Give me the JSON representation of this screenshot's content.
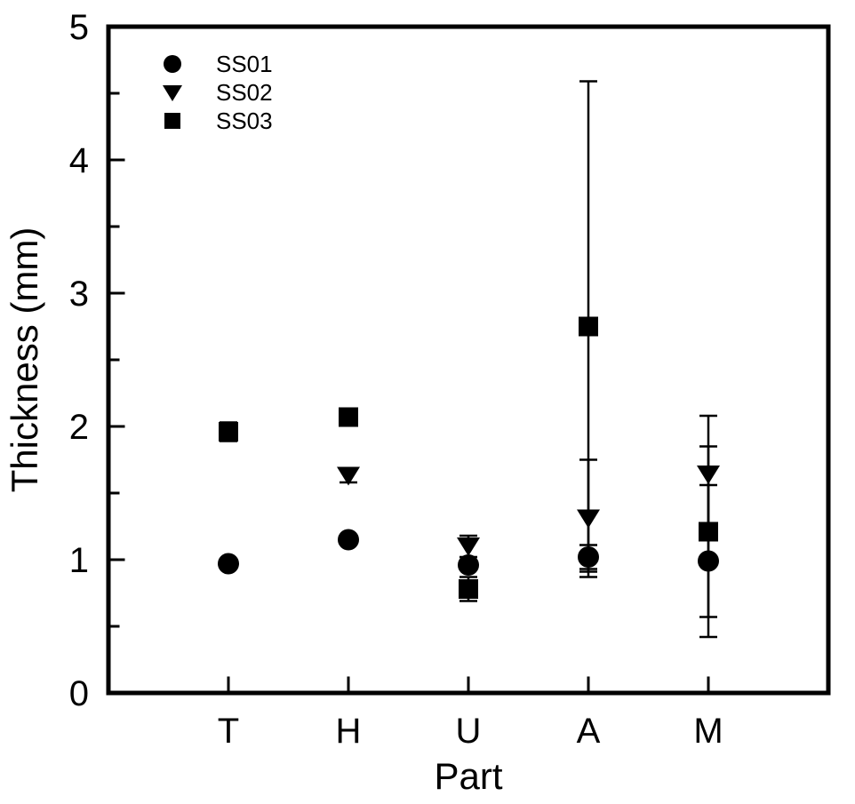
{
  "chart_data": {
    "type": "scatter",
    "title": "",
    "xlabel": "Part",
    "ylabel": "Thickness (mm)",
    "categories": [
      "T",
      "H",
      "U",
      "A",
      "M"
    ],
    "ylim": [
      0,
      5
    ],
    "yticks": [
      0,
      1,
      2,
      3,
      4,
      5
    ],
    "yminorticks": [
      0.5,
      1.5,
      2.5,
      3.5,
      4.5
    ],
    "grid": false,
    "legend_position": "top-left-inside",
    "marker_color": "#000000",
    "background_color": "#ffffff",
    "series": [
      {
        "name": "SS01",
        "marker": "circle",
        "values": [
          0.97,
          1.15,
          0.96,
          1.02,
          0.99
        ],
        "errors": [
          0,
          0,
          0,
          0.09,
          0.57
        ]
      },
      {
        "name": "SS02",
        "marker": "triangle-down",
        "values": [
          null,
          1.63,
          1.1,
          1.31,
          1.64
        ],
        "errors": [
          0,
          0.05,
          0.08,
          0.44,
          0.44
        ]
      },
      {
        "name": "SS03",
        "marker": "square",
        "values": [
          1.96,
          2.07,
          0.78,
          2.75,
          1.21
        ],
        "errors": [
          0.07,
          0,
          0.09,
          1.84,
          0.64
        ]
      }
    ]
  }
}
